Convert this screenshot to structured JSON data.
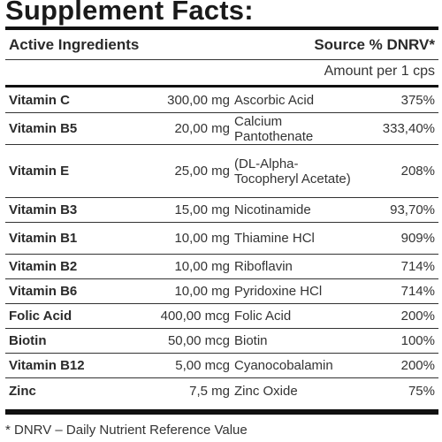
{
  "title": "Supplement Facts:",
  "header": {
    "active_ingredients": "Active Ingredients",
    "source_dnrv": "Source % DNRV*",
    "amount_per": "Amount per 1 cps"
  },
  "rows": [
    {
      "name": "Vitamin C",
      "amount": "300,00 mg",
      "source": "Ascorbic Acid",
      "dnrv": "375%"
    },
    {
      "name": "Vitamin B5",
      "amount": "20,00 mg",
      "source": "Calcium Pantothenate",
      "dnrv": "333,40%"
    },
    {
      "name": "Vitamin E",
      "amount": "25,00 mg",
      "source": "(DL-Alpha-Tocopheryl Acetate)",
      "dnrv": "208%"
    },
    {
      "name": "Vitamin B3",
      "amount": "15,00 mg",
      "source": "Nicotinamide",
      "dnrv": "93,70%"
    },
    {
      "name": "Vitamin B1",
      "amount": "10,00 mg",
      "source": "Thiamine HCl",
      "dnrv": "909%"
    },
    {
      "name": "Vitamin B2",
      "amount": "10,00 mg",
      "source": "Riboflavin",
      "dnrv": "714%"
    },
    {
      "name": "Vitamin B6",
      "amount": "10,00 mg",
      "source": "Pyridoxine HCl",
      "dnrv": "714%"
    },
    {
      "name": "Folic Acid",
      "amount": "400,00 mcg",
      "source": "Folic Acid",
      "dnrv": "200%"
    },
    {
      "name": "Biotin",
      "amount": "50,00 mcg",
      "source": "Biotin",
      "dnrv": "100%"
    },
    {
      "name": "Vitamin B12",
      "amount": "5,00 mcg",
      "source": "Cyanocobalamin",
      "dnrv": "200%"
    },
    {
      "name": "Zinc",
      "amount": "7,5 mg",
      "source": "Zinc Oxide",
      "dnrv": "75%"
    }
  ],
  "footnote": "* DNRV – Daily Nutrient Reference Value"
}
